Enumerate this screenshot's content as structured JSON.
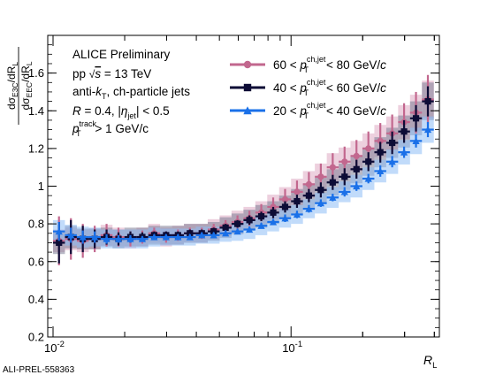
{
  "chart_data": {
    "type": "scatter",
    "xscale": "log",
    "xlim": [
      0.0095,
      0.42
    ],
    "ylim": [
      0.2,
      1.8
    ],
    "xlabel": "R_L",
    "ylabel": "dσ_E3C/dR_L / dσ_EEC/dR_L",
    "x_ticks": [
      {
        "v": 0.01,
        "label": "10^-2"
      },
      {
        "v": 0.1,
        "label": "10^-1"
      }
    ],
    "y_ticks": [
      0.2,
      0.4,
      0.6,
      0.8,
      1,
      1.2,
      1.4,
      1.6
    ],
    "y_tick_labels": [
      "0.2",
      "0.4",
      "0.6",
      "0.8",
      "1",
      "1.2",
      "1.4",
      "1.6"
    ],
    "annotations": [
      "ALICE Preliminary",
      "pp √s = 13 TeV",
      "anti-kT, ch-particle jets",
      "R = 0.4, |ηjet| < 0.5",
      "pTtrack > 1 GeV/c"
    ],
    "legend_position": "top-right",
    "x_bins": [
      0.01,
      0.01122,
      0.01259,
      0.01413,
      0.01585,
      0.01778,
      0.01995,
      0.02239,
      0.02512,
      0.02818,
      0.03162,
      0.03548,
      0.03981,
      0.04467,
      0.05012,
      0.05623,
      0.0631,
      0.07079,
      0.07943,
      0.08913,
      0.1,
      0.1122,
      0.1259,
      0.1413,
      0.1585,
      0.1778,
      0.1995,
      0.2239,
      0.2512,
      0.2818,
      0.3162,
      0.3548,
      0.3981
    ],
    "series": [
      {
        "name": "60 < pTch,jet < 80 GeV/c",
        "color": "#c2678e",
        "band_color": "#dfa9c2",
        "marker": "circle",
        "y": [
          0.71,
          0.72,
          0.71,
          0.72,
          0.74,
          0.73,
          0.72,
          0.73,
          0.75,
          0.73,
          0.74,
          0.75,
          0.75,
          0.77,
          0.79,
          0.81,
          0.83,
          0.86,
          0.89,
          0.93,
          0.97,
          1.01,
          1.05,
          1.1,
          1.13,
          1.16,
          1.2,
          1.24,
          1.28,
          1.34,
          1.39,
          1.46
        ],
        "stat": [
          0.13,
          0.11,
          0.09,
          0.07,
          0.06,
          0.05,
          0.04,
          0.035,
          0.03,
          0.03,
          0.03,
          0.03,
          0.03,
          0.03,
          0.03,
          0.035,
          0.04,
          0.045,
          0.05,
          0.055,
          0.06,
          0.065,
          0.07,
          0.075,
          0.08,
          0.085,
          0.09,
          0.095,
          0.1,
          0.1,
          0.11,
          0.13
        ],
        "sys": [
          0.06,
          0.06,
          0.06,
          0.055,
          0.055,
          0.05,
          0.05,
          0.05,
          0.05,
          0.05,
          0.05,
          0.05,
          0.05,
          0.055,
          0.055,
          0.06,
          0.06,
          0.06,
          0.065,
          0.065,
          0.07,
          0.07,
          0.07,
          0.075,
          0.075,
          0.08,
          0.08,
          0.085,
          0.09,
          0.09,
          0.095,
          0.1
        ]
      },
      {
        "name": "40 < pTch,jet < 60 GeV/c",
        "color": "#0d0c36",
        "band_color": "#7d7d96",
        "marker": "square",
        "y": [
          0.7,
          0.73,
          0.72,
          0.72,
          0.73,
          0.72,
          0.73,
          0.73,
          0.74,
          0.74,
          0.74,
          0.75,
          0.75,
          0.76,
          0.78,
          0.8,
          0.82,
          0.84,
          0.86,
          0.89,
          0.92,
          0.95,
          0.98,
          1.02,
          1.05,
          1.09,
          1.13,
          1.18,
          1.23,
          1.29,
          1.36,
          1.45
        ],
        "stat": [
          0.11,
          0.09,
          0.07,
          0.05,
          0.04,
          0.035,
          0.03,
          0.025,
          0.02,
          0.02,
          0.02,
          0.02,
          0.02,
          0.02,
          0.02,
          0.02,
          0.025,
          0.025,
          0.03,
          0.03,
          0.035,
          0.035,
          0.04,
          0.04,
          0.045,
          0.05,
          0.05,
          0.055,
          0.06,
          0.06,
          0.07,
          0.08
        ],
        "sys": [
          0.06,
          0.06,
          0.055,
          0.055,
          0.05,
          0.05,
          0.05,
          0.05,
          0.05,
          0.05,
          0.05,
          0.05,
          0.05,
          0.05,
          0.055,
          0.055,
          0.055,
          0.06,
          0.06,
          0.06,
          0.065,
          0.065,
          0.065,
          0.07,
          0.07,
          0.075,
          0.075,
          0.08,
          0.08,
          0.085,
          0.09,
          0.1
        ]
      },
      {
        "name": "20 < pTch,jet < 40 GeV/c",
        "color": "#1a70e8",
        "band_color": "#8ebef5",
        "marker": "triangle",
        "y": [
          0.76,
          0.74,
          0.73,
          0.73,
          0.72,
          0.72,
          0.72,
          0.72,
          0.73,
          0.73,
          0.73,
          0.73,
          0.74,
          0.74,
          0.75,
          0.76,
          0.77,
          0.79,
          0.81,
          0.83,
          0.85,
          0.88,
          0.91,
          0.94,
          0.97,
          1.0,
          1.04,
          1.08,
          1.13,
          1.18,
          1.24,
          1.3
        ],
        "stat": [
          0.05,
          0.04,
          0.035,
          0.03,
          0.025,
          0.02,
          0.02,
          0.015,
          0.015,
          0.015,
          0.015,
          0.015,
          0.015,
          0.015,
          0.015,
          0.015,
          0.015,
          0.015,
          0.015,
          0.02,
          0.02,
          0.02,
          0.02,
          0.02,
          0.025,
          0.025,
          0.025,
          0.03,
          0.03,
          0.03,
          0.035,
          0.04
        ],
        "sys": [
          0.06,
          0.055,
          0.055,
          0.05,
          0.05,
          0.05,
          0.05,
          0.05,
          0.05,
          0.045,
          0.045,
          0.045,
          0.045,
          0.045,
          0.045,
          0.05,
          0.05,
          0.05,
          0.05,
          0.05,
          0.05,
          0.05,
          0.055,
          0.055,
          0.055,
          0.06,
          0.06,
          0.06,
          0.065,
          0.065,
          0.07,
          0.07
        ]
      }
    ]
  },
  "watermark": "ALI-PREL-558363"
}
